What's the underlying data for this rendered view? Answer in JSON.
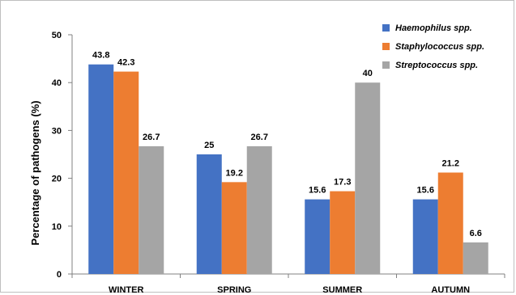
{
  "chart_data": {
    "type": "bar",
    "title": "",
    "xlabel": "",
    "ylabel": "Percentage of pathogens (%)",
    "ylim": [
      0,
      50
    ],
    "yticks": [
      0,
      10,
      20,
      30,
      40,
      50
    ],
    "grid": false,
    "legend_position": "top-right",
    "categories": [
      "WINTER",
      "SPRING",
      "SUMMER",
      "AUTUMN"
    ],
    "series": [
      {
        "name": "Haemophilus spp.",
        "color": "#4472c4",
        "values": [
          43.8,
          25,
          15.6,
          15.6
        ],
        "labels": [
          "43.8",
          "25",
          "15.6",
          "15.6"
        ]
      },
      {
        "name": "Staphylococcus spp.",
        "color": "#ed7d31",
        "values": [
          42.3,
          19.2,
          17.3,
          21.2
        ],
        "labels": [
          "42.3",
          "19.2",
          "17.3",
          "21.2"
        ]
      },
      {
        "name": "Streptococcus spp.",
        "color": "#a5a5a5",
        "values": [
          26.7,
          26.7,
          40,
          6.6
        ],
        "labels": [
          "26.7",
          "26.7",
          "40",
          "6.6"
        ]
      }
    ]
  }
}
